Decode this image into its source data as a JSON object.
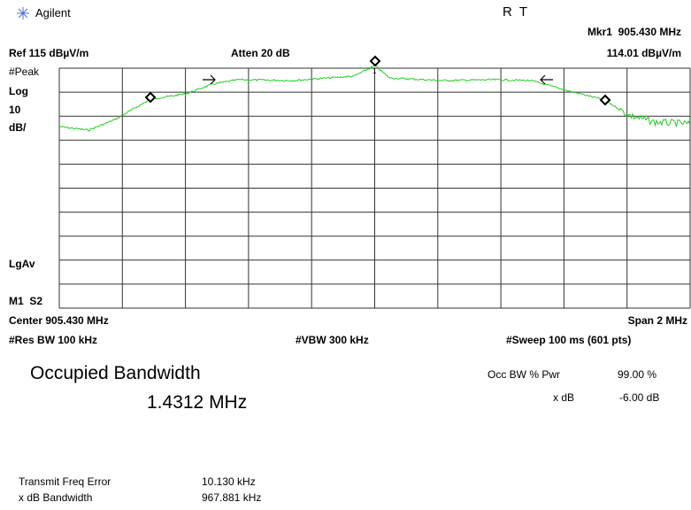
{
  "header": {
    "brand": "Agilent",
    "status": "R  T",
    "marker": "Mkr1  905.430 MHz",
    "marker_level": "114.01 dBµV/m"
  },
  "top_bar": {
    "ref": "Ref 115 dBµV/m",
    "atten": "Atten 20 dB"
  },
  "left_labels": {
    "detector": "#Peak",
    "scale": "Log",
    "per_div": "10",
    "unit": "dB/",
    "avg": "LgAv",
    "mode": "M1  S2"
  },
  "marker_label": "1",
  "bottom": {
    "center": "Center 905.430 MHz",
    "span": "Span 2 MHz",
    "res_bw": "#Res BW 100 kHz",
    "vbw": "#VBW 300 kHz",
    "sweep": "#Sweep 100 ms (601 pts)"
  },
  "results": {
    "title": "Occupied Bandwidth",
    "value": "1.4312 MHz",
    "params": [
      [
        "Occ BW % Pwr",
        "99.00 %"
      ],
      [
        "x dB",
        "-6.00 dB"
      ]
    ],
    "rows": [
      [
        "Transmit Freq Error",
        "10.130 kHz"
      ],
      [
        "x dB Bandwidth",
        "967.881 kHz"
      ]
    ]
  }
}
